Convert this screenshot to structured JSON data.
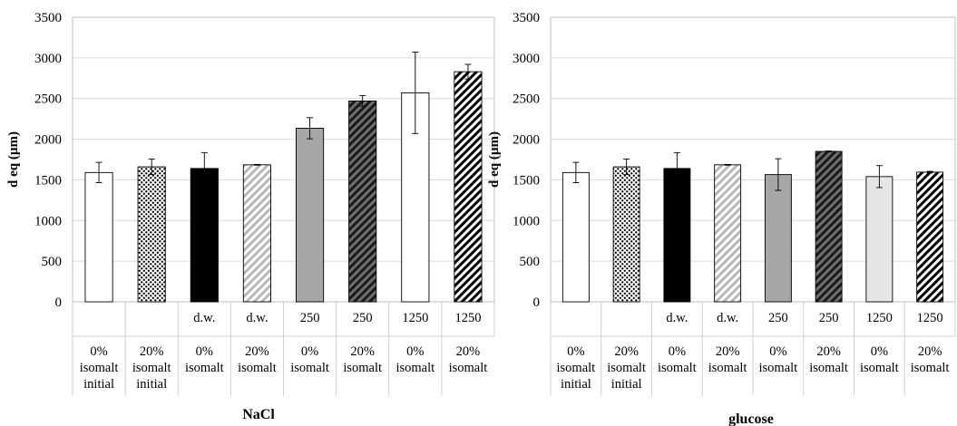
{
  "chart_data": [
    {
      "type": "bar",
      "title": "NaCl",
      "ylabel": "d eq (µm)",
      "xlabel": "",
      "ylim": [
        0,
        3500
      ],
      "yticks": [
        0,
        500,
        1000,
        1500,
        2000,
        2500,
        3000,
        3500
      ],
      "grid": true,
      "legend": "none",
      "categories": [
        {
          "row1": "",
          "row2": "0%",
          "row3": "isomalt",
          "row4": "initial"
        },
        {
          "row1": "",
          "row2": "20%",
          "row3": "isomalt",
          "row4": "initial"
        },
        {
          "row1": "d.w.",
          "row2": "0%",
          "row3": "isomalt",
          "row4": ""
        },
        {
          "row1": "d.w.",
          "row2": "20%",
          "row3": "isomalt",
          "row4": ""
        },
        {
          "row1": "250",
          "row2": "0%",
          "row3": "isomalt",
          "row4": ""
        },
        {
          "row1": "250",
          "row2": "20%",
          "row3": "isomalt",
          "row4": ""
        },
        {
          "row1": "1250",
          "row2": "0%",
          "row3": "isomalt",
          "row4": ""
        },
        {
          "row1": "1250",
          "row2": "20%",
          "row3": "isomalt",
          "row4": ""
        }
      ],
      "values": [
        1590,
        1660,
        1640,
        1685,
        2135,
        2470,
        2570,
        2830
      ],
      "errors": [
        125,
        95,
        195,
        5,
        130,
        65,
        500,
        90
      ],
      "fills": [
        "white",
        "dots",
        "black",
        "light-diag",
        "gray",
        "dark-diag",
        "white",
        "bw-diag"
      ]
    },
    {
      "type": "bar",
      "title": "glucose",
      "ylabel": "d eq (µm)",
      "xlabel": "",
      "ylim": [
        0,
        3500
      ],
      "yticks": [
        0,
        500,
        1000,
        1500,
        2000,
        2500,
        3000,
        3500
      ],
      "grid": true,
      "legend": "none",
      "categories": [
        {
          "row1": "",
          "row2": "0%",
          "row3": "isomalt",
          "row4": "initial"
        },
        {
          "row1": "",
          "row2": "20%",
          "row3": "isomalt",
          "row4": "initial"
        },
        {
          "row1": "d.w.",
          "row2": "0%",
          "row3": "isomalt",
          "row4": ""
        },
        {
          "row1": "d.w.",
          "row2": "20%",
          "row3": "isomalt",
          "row4": ""
        },
        {
          "row1": "250",
          "row2": "0%",
          "row3": "isomalt",
          "row4": ""
        },
        {
          "row1": "250",
          "row2": "20%",
          "row3": "isomalt",
          "row4": ""
        },
        {
          "row1": "1250",
          "row2": "0%",
          "row3": "isomalt",
          "row4": ""
        },
        {
          "row1": "1250",
          "row2": "20%",
          "row3": "isomalt",
          "row4": ""
        }
      ],
      "values": [
        1590,
        1660,
        1640,
        1685,
        1565,
        1850,
        1540,
        1595
      ],
      "errors": [
        125,
        95,
        195,
        5,
        195,
        5,
        135,
        10
      ],
      "fills": [
        "white",
        "dots",
        "black",
        "light-diag",
        "gray",
        "dark-diag",
        "lightgray",
        "bw-diag"
      ]
    }
  ],
  "colors": {
    "white": "#ffffff",
    "black": "#000000",
    "gray": "#a6a6a6",
    "lightgray": "#e6e6e6",
    "dark_diag_bg": "#6f6f6f",
    "light_diag_stripe": "#b8b8b8",
    "grid": "#d9d9d9",
    "axis": "#bfbfbf"
  }
}
